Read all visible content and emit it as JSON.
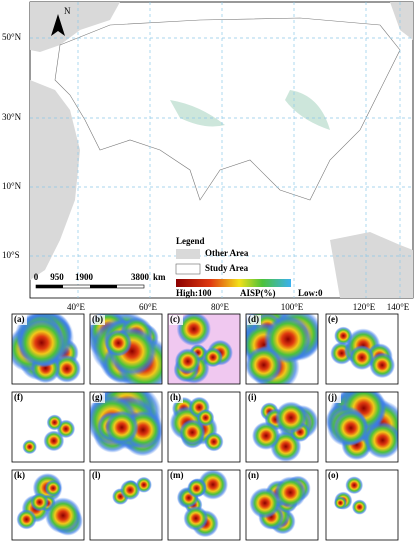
{
  "map": {
    "north": "N",
    "latitude_labels": [
      "50°N",
      "30°N",
      "10°N",
      "10°S"
    ],
    "longitude_labels": [
      "40°E",
      "60°E",
      "80°E",
      "100°E",
      "120°E",
      "140°E"
    ],
    "legend": {
      "title": "Legend",
      "items": [
        "Other Area",
        "Study Area"
      ],
      "high": "High:100",
      "name": "AISP(%)",
      "low": "Low:0"
    },
    "scale_bar": {
      "ticks": [
        "0",
        "950",
        "1900",
        "3800"
      ],
      "unit": "km"
    }
  },
  "panels": [
    "(a)",
    "(b)",
    "(c)",
    "(d)",
    "(e)",
    "(f)",
    "(g)",
    "(h)",
    "(i)",
    "(j)",
    "(k)",
    "(l)",
    "(m)",
    "(n)",
    "(o)"
  ]
}
